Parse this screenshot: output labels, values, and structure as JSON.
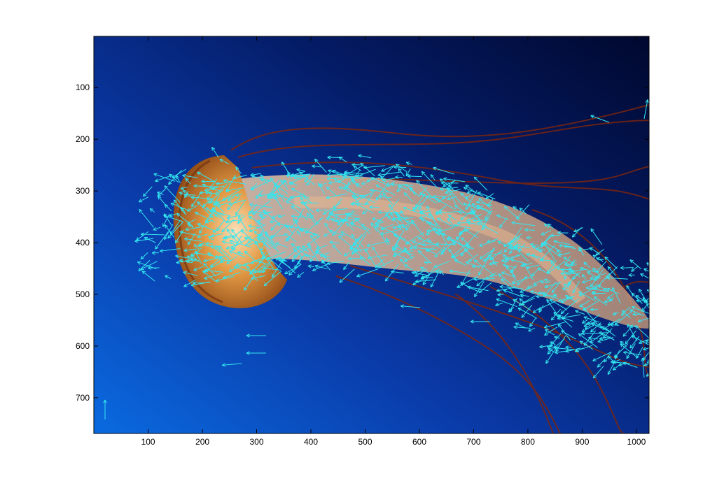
{
  "figure": {
    "x_ticks": [
      "100",
      "200",
      "300",
      "400",
      "500",
      "600",
      "700",
      "800",
      "900",
      "1000"
    ],
    "y_ticks": [
      "100",
      "200",
      "300",
      "400",
      "500",
      "600",
      "700"
    ],
    "x_range": [
      1,
      1024
    ],
    "y_range": [
      1,
      768
    ],
    "colors": {
      "water_light": "#0a64d8",
      "water_dark": "#000a3a",
      "jelly_orange": "#d9842a",
      "jelly_body": "#f4c89a",
      "tentacle": "#7a2510",
      "arrow": "#33e6f0",
      "axis": "#000000",
      "figure_bg": "#ffffff"
    }
  }
}
